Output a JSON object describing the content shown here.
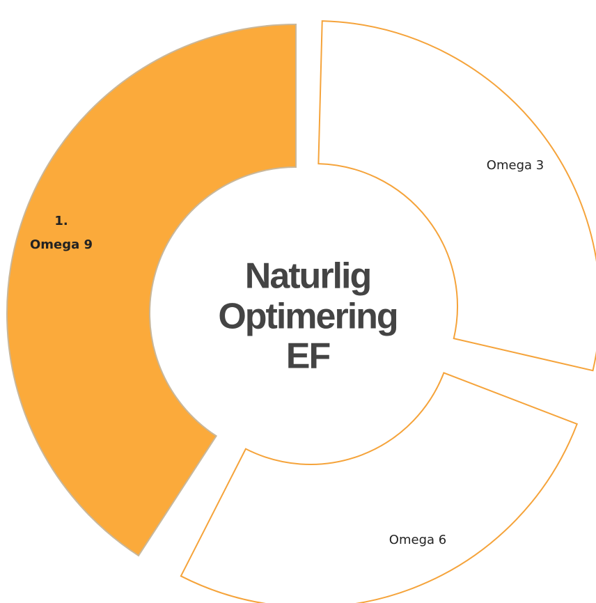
{
  "center_title": [
    "Naturlig",
    "Optimering",
    "EF"
  ],
  "segments": [
    {
      "label": [
        "1.",
        "Omega 9"
      ]
    },
    {
      "label": [
        "Omega 3"
      ]
    },
    {
      "label": [
        "Omega 6"
      ]
    }
  ]
}
